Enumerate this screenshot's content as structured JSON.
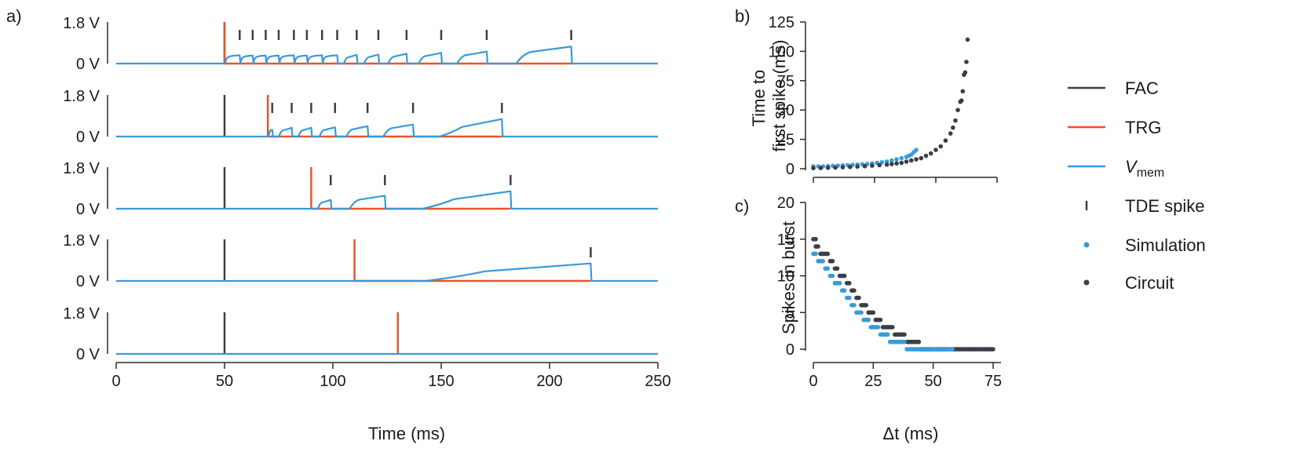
{
  "colors": {
    "fac": "#3b3f45",
    "trg": "#e8552a",
    "vmem": "#3a9ad9",
    "axis": "#2b2b2b"
  },
  "panel_labels": {
    "a": "a)",
    "b": "b)",
    "c": "c)"
  },
  "chart_data": [
    {
      "id": "a",
      "type": "line",
      "xlabel": "Time (ms)",
      "xlim": [
        0,
        250
      ],
      "xticks": [
        "0",
        "50",
        "100",
        "150",
        "200",
        "250"
      ],
      "ytick_labels": [
        "0 V",
        "1.8 V"
      ],
      "traces": [
        {
          "trg_time": 50,
          "fac_time": 50,
          "spikes": [
            57,
            63,
            69,
            75,
            82,
            88,
            95,
            102,
            111,
            121,
            134,
            150,
            171,
            210
          ]
        },
        {
          "trg_time": 70,
          "fac_time": 50,
          "spikes": [
            72,
            81,
            90,
            101,
            116,
            137,
            178
          ]
        },
        {
          "trg_time": 90,
          "fac_time": 50,
          "spikes": [
            99,
            124,
            182
          ]
        },
        {
          "trg_time": 110,
          "fac_time": 50,
          "spikes": [
            219
          ]
        },
        {
          "trg_time": 130,
          "fac_time": 50,
          "spikes": []
        }
      ]
    },
    {
      "id": "b",
      "type": "scatter",
      "ylabel_lines": [
        "Time to",
        "first spike (ms)"
      ],
      "ylim": [
        0,
        125
      ],
      "yticks": [
        "0",
        "25",
        "50",
        "75",
        "100",
        "125"
      ],
      "xlim": [
        0,
        75
      ],
      "series": [
        {
          "name": "Simulation",
          "x": [
            0,
            2,
            4,
            6,
            8,
            10,
            12,
            14,
            16,
            18,
            20,
            22,
            24,
            26,
            28,
            30,
            32,
            34,
            36,
            38,
            39,
            40,
            41,
            42
          ],
          "y": [
            2,
            2,
            2,
            2.2,
            2.4,
            2.6,
            2.8,
            3,
            3.2,
            3.5,
            3.8,
            4,
            4.5,
            5,
            5.5,
            6,
            7,
            8,
            9,
            10,
            11,
            12,
            14,
            16
          ]
        },
        {
          "name": "Circuit",
          "x": [
            0,
            3,
            6,
            9,
            12,
            15,
            18,
            21,
            24,
            27,
            30,
            32,
            34,
            36,
            38,
            40,
            42,
            44,
            46,
            48,
            50,
            52,
            54,
            56,
            57,
            58,
            59,
            60,
            60.5,
            61,
            61.5,
            62,
            62.5,
            63
          ],
          "y": [
            0.5,
            0.6,
            0.8,
            1,
            1.2,
            1.5,
            1.8,
            2.2,
            2.6,
            3,
            3.5,
            4,
            4.5,
            5,
            6,
            7,
            8,
            9,
            11,
            13,
            16,
            19,
            24,
            30,
            35,
            41,
            50,
            57,
            58,
            66,
            80,
            82,
            91,
            110
          ]
        }
      ]
    },
    {
      "id": "c",
      "type": "scatter",
      "ylabel": "Spikes in burst",
      "xlabel": "Δt (ms)",
      "ylim": [
        0,
        20
      ],
      "yticks": [
        "0",
        "5",
        "10",
        "15",
        "20"
      ],
      "xlim": [
        0,
        75
      ],
      "xticks": [
        "0",
        "25",
        "50",
        "75"
      ],
      "series": [
        {
          "name": "Simulation",
          "x_start": [
            0,
            2,
            5,
            7,
            9,
            12,
            14,
            16,
            18,
            21,
            24,
            28,
            32,
            39
          ],
          "x_end": [
            1,
            4,
            6,
            8,
            11,
            13,
            15,
            17,
            20,
            23,
            27,
            31,
            38,
            58
          ],
          "y": [
            13,
            12,
            11,
            10,
            9,
            8,
            7,
            6,
            5,
            4,
            3,
            2,
            1,
            0
          ]
        },
        {
          "name": "Circuit",
          "x_start": [
            0,
            1,
            3,
            7,
            9,
            11,
            14,
            16,
            18,
            20,
            23,
            26,
            29,
            34,
            39,
            45,
            51,
            58
          ],
          "x_end": [
            1,
            2,
            6,
            8,
            10,
            13,
            15,
            17,
            19,
            22,
            25,
            28,
            33,
            38,
            44,
            50,
            57,
            75
          ],
          "y": [
            15,
            14,
            13,
            12,
            11,
            10,
            9,
            8,
            7,
            6,
            5,
            4,
            3,
            2,
            1,
            0,
            0,
            0
          ]
        }
      ]
    }
  ],
  "legend": {
    "items": [
      {
        "label": "FAC",
        "kind": "line",
        "color": "#3b3f45"
      },
      {
        "label": "TRG",
        "kind": "line",
        "color": "#e8552a"
      },
      {
        "label": "V",
        "sub": "mem",
        "kind": "line",
        "color": "#3a9ad9"
      },
      {
        "label": "TDE spike",
        "kind": "tick",
        "color": "#3b3f45"
      },
      {
        "label": "Simulation",
        "kind": "dot",
        "color": "#3a9ad9"
      },
      {
        "label": "Circuit",
        "kind": "dot",
        "color": "#3b3f45"
      }
    ]
  }
}
